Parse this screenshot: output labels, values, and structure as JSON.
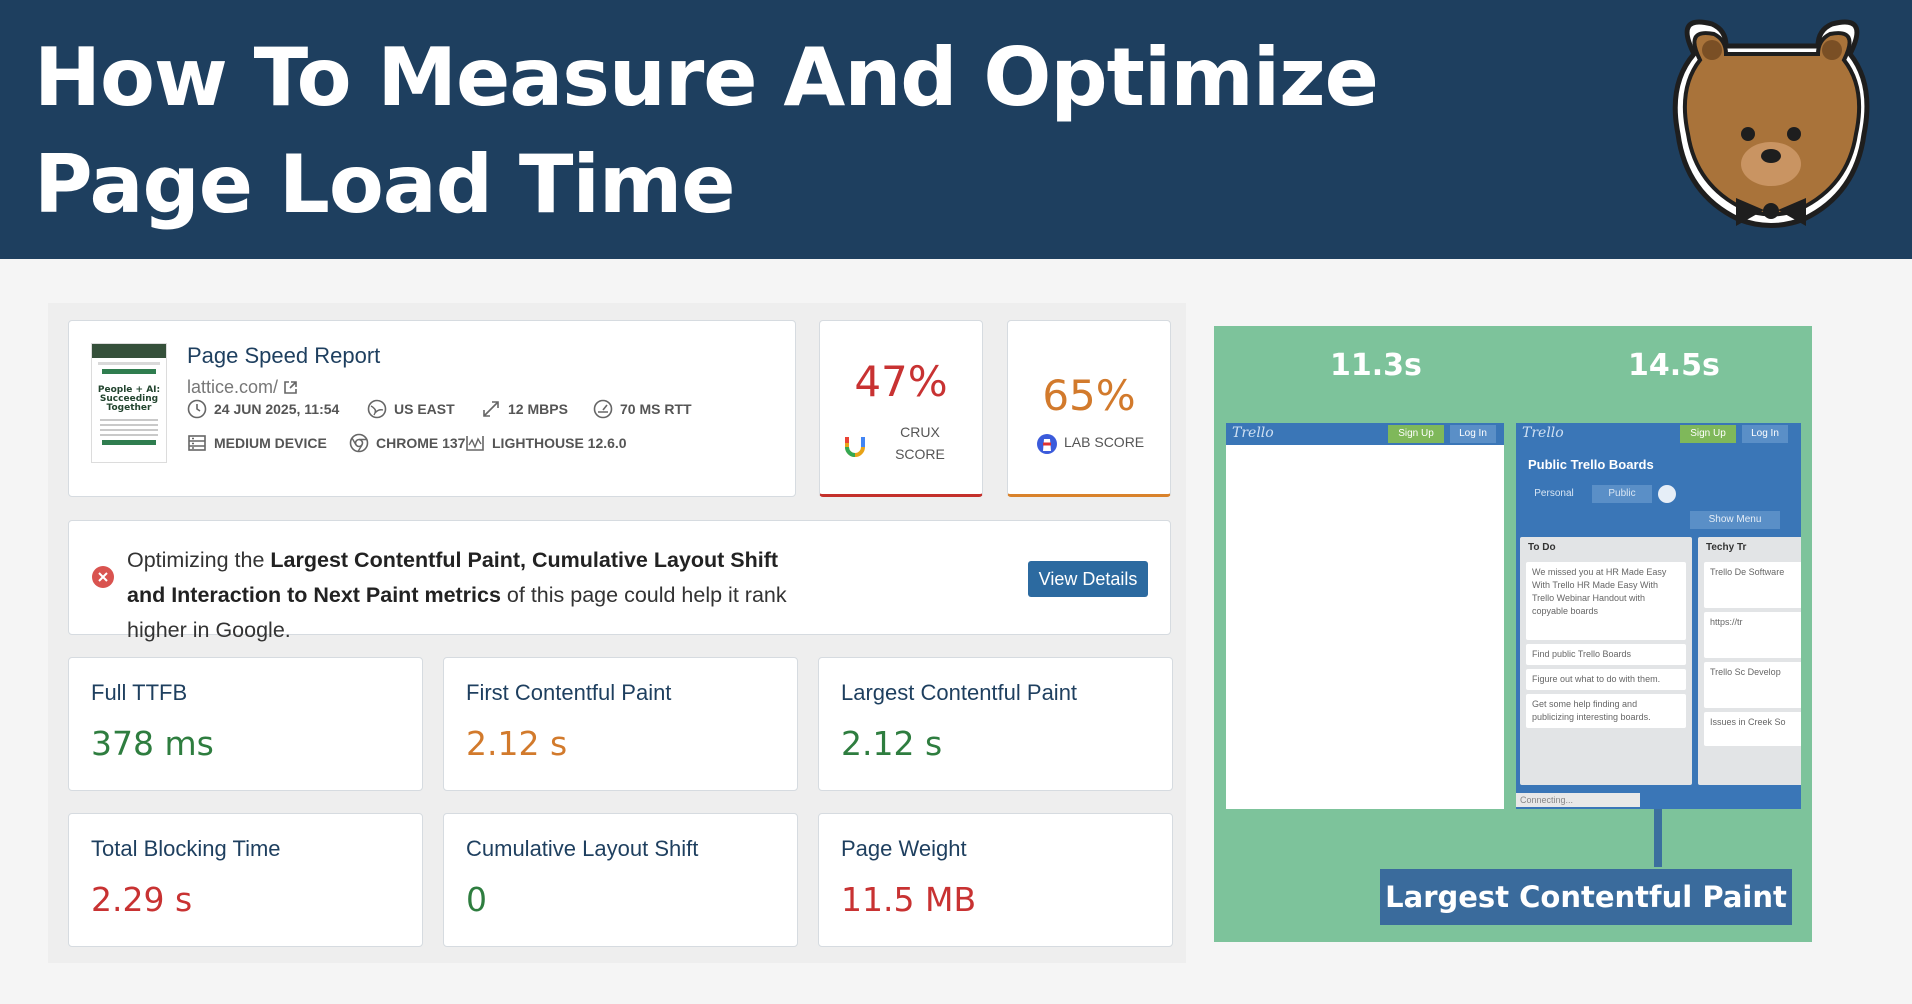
{
  "banner": {
    "title": "How To Measure And Optimize\nPage Load Time"
  },
  "thumbnail": {
    "headline": "People + AI: Succeeding Together"
  },
  "report": {
    "title": "Page Speed Report",
    "url": "lattice.com/",
    "meta": {
      "date": "24 JUN 2025, 11:54",
      "location": "US EAST",
      "bandwidth": "12 MBPS",
      "rtt": "70 MS RTT",
      "device": "MEDIUM DEVICE",
      "browser": "CHROME 137",
      "lighthouse": "LIGHTHOUSE 12.6.0"
    }
  },
  "scores": {
    "crux": {
      "value": "47%",
      "label_line1": "CRUX",
      "label_line2": "SCORE",
      "color": "#c83232"
    },
    "lab": {
      "value": "65%",
      "label": "LAB SCORE",
      "color": "#d27a2c"
    }
  },
  "alert": {
    "text_1": "Optimizing the ",
    "bold_1": "Largest Contentful Paint, Cumulative Layout Shift and Interaction to Next Paint metrics",
    "text_2": " of this page could help it rank higher in Google.",
    "button": "View Details"
  },
  "metrics": [
    {
      "label": "Full TTFB",
      "value": "378 ms",
      "status": "good"
    },
    {
      "label": "First Contentful Paint",
      "value": "2.12 s",
      "status": "needs-improvement"
    },
    {
      "label": "Largest Contentful Paint",
      "value": "2.12 s",
      "status": "good"
    },
    {
      "label": "Total Blocking Time",
      "value": "2.29 s",
      "status": "poor"
    },
    {
      "label": "Cumulative Layout Shift",
      "value": "0",
      "status": "good"
    },
    {
      "label": "Page Weight",
      "value": "11.5 MB",
      "status": "poor"
    }
  ],
  "filmstrip": {
    "frames": [
      {
        "time": "11.3s"
      },
      {
        "time": "14.5s"
      }
    ],
    "trello": {
      "brand": "Trello",
      "sign_up": "Sign Up",
      "log_in": "Log In",
      "heading": "Public Trello Boards",
      "personal": "Personal",
      "public": "Public",
      "show_menu": "Show Menu",
      "list1_title": "To Do",
      "list1_cards": [
        "We missed you at HR Made Easy With Trello HR Made Easy With Trello Webinar Handout with copyable boards",
        "Find public Trello Boards",
        "Figure out what to do with them.",
        "Get some help finding and publicizing interesting boards."
      ],
      "list2_title": "Techy Tr",
      "list2_cards": [
        "Trello De Software",
        "https://tr",
        "Trello Sc Develop",
        "Issues in Creek So"
      ],
      "connecting": "Connecting..."
    },
    "annotation": "Largest Contentful Paint"
  }
}
